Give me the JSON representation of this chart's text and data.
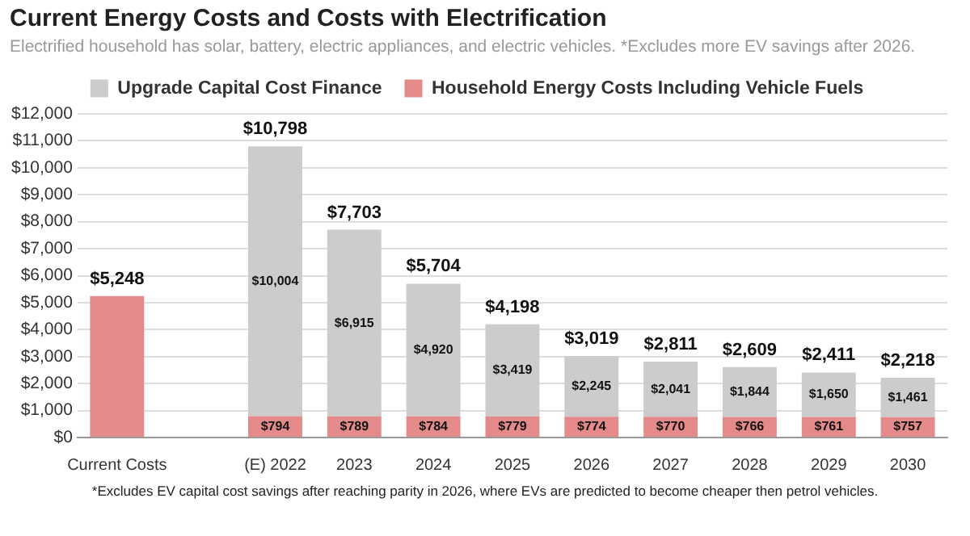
{
  "chart_data": {
    "type": "bar",
    "title": "Current Energy Costs and Costs with Electrification",
    "subtitle": "Electrified household has solar, battery, electric appliances, and electric vehicles. *Excludes more EV savings after 2026.",
    "categories": [
      "Current Costs",
      null,
      "(E) 2022",
      "2023",
      "2024",
      "2025",
      "2026",
      "2027",
      "2028",
      "2029",
      "2030"
    ],
    "stacked": true,
    "series": [
      {
        "name": "Household Energy Costs Including Vehicle Fuels",
        "color": "#e58a8a",
        "values": [
          5248,
          null,
          794,
          789,
          784,
          779,
          774,
          770,
          766,
          761,
          757
        ],
        "value_labels": [
          null,
          null,
          "$794",
          "$789",
          "$784",
          "$779",
          "$774",
          "$770",
          "$766",
          "$761",
          "$757"
        ]
      },
      {
        "name": "Upgrade Capital Cost Finance",
        "color": "#cccccc",
        "values": [
          null,
          null,
          10004,
          6915,
          4920,
          3419,
          2245,
          2041,
          1844,
          1650,
          1461
        ],
        "value_labels": [
          null,
          null,
          "$10,004",
          "$6,915",
          "$4,920",
          "$3,419",
          "$2,245",
          "$2,041",
          "$1,844",
          "$1,650",
          "$1,461"
        ]
      }
    ],
    "totals": [
      "$5,248",
      null,
      "$10,798",
      "$7,703",
      "$5,704",
      "$4,198",
      "$3,019",
      "$2,811",
      "$2,609",
      "$2,411",
      "$2,218"
    ],
    "ylim": [
      0,
      12000
    ],
    "yticks": [
      {
        "value": 0,
        "label": "$0"
      },
      {
        "value": 1000,
        "label": "$1,000"
      },
      {
        "value": 2000,
        "label": "$2,000"
      },
      {
        "value": 3000,
        "label": "$3,000"
      },
      {
        "value": 4000,
        "label": "$4,000"
      },
      {
        "value": 5000,
        "label": "$5,000"
      },
      {
        "value": 6000,
        "label": "$6,000"
      },
      {
        "value": 7000,
        "label": "$7,000"
      },
      {
        "value": 8000,
        "label": "$8,000"
      },
      {
        "value": 9000,
        "label": "$9,000"
      },
      {
        "value": 10000,
        "label": "$10,000"
      },
      {
        "value": 11000,
        "label": "$11,000"
      },
      {
        "value": 12000,
        "label": "$12,000"
      }
    ],
    "grid": "y",
    "legend": "top",
    "annotations": [
      "*Excludes EV capital cost savings after reaching parity in 2026, where EVs are predicted to become cheaper then petrol vehicles."
    ]
  }
}
